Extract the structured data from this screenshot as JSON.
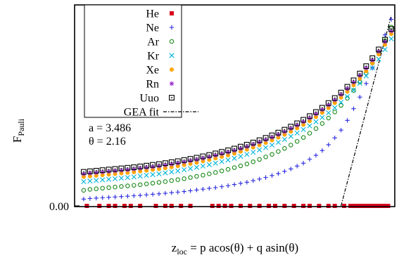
{
  "chart_data": {
    "type": "scatter",
    "ylabel_main": "F",
    "ylabel_sub": "Pauli",
    "xlabel_main": "z",
    "xlabel_sub": "loc",
    "xlabel_rest": " = p acos(θ) + q asin(θ)",
    "ytick_label": "0.00",
    "ytick_value": 0,
    "xlim": [
      0,
      1
    ],
    "ylim": [
      -0.02,
      1
    ],
    "annotations": [
      "a = 3.486",
      "θ = 2.16"
    ],
    "legend_position": "top-left",
    "series": [
      {
        "name": "He",
        "marker": "square-filled",
        "color": "#d6001c",
        "x": [
          0.03,
          0.07,
          0.1,
          0.12,
          0.15,
          0.17,
          0.2,
          0.25,
          0.28,
          0.3,
          0.33,
          0.36,
          0.43,
          0.45,
          0.47,
          0.49,
          0.52,
          0.55,
          0.58,
          0.61,
          0.63,
          0.66,
          0.69,
          0.72,
          0.74,
          0.77,
          0.8,
          0.82,
          0.85,
          0.87,
          0.88,
          0.89,
          0.9,
          0.91,
          0.92,
          0.93,
          0.94,
          0.95,
          0.96,
          0.97,
          0.98,
          0.99
        ],
        "y": [
          0,
          0,
          0,
          0,
          0,
          0,
          0,
          0,
          0,
          0,
          0,
          0,
          0,
          0,
          0,
          0,
          0,
          0,
          0,
          0,
          0,
          0,
          0,
          0,
          0,
          0,
          0,
          0,
          0,
          0,
          0,
          0,
          0,
          0,
          0,
          0,
          0,
          0,
          0,
          0,
          0,
          0
        ]
      },
      {
        "name": "Ne",
        "marker": "plus",
        "color": "#2a2ae0",
        "x": [
          0.02,
          0.04,
          0.06,
          0.08,
          0.1,
          0.12,
          0.14,
          0.16,
          0.18,
          0.2,
          0.22,
          0.24,
          0.26,
          0.28,
          0.3,
          0.32,
          0.34,
          0.36,
          0.38,
          0.4,
          0.42,
          0.44,
          0.46,
          0.48,
          0.5,
          0.52,
          0.54,
          0.56,
          0.58,
          0.6,
          0.62,
          0.64,
          0.66,
          0.68,
          0.7,
          0.72,
          0.74,
          0.76,
          0.78,
          0.8,
          0.82,
          0.84,
          0.86,
          0.88,
          0.9,
          0.92,
          0.94,
          0.96,
          0.98,
          1.0
        ],
        "y": [
          0.035,
          0.038,
          0.04,
          0.042,
          0.044,
          0.046,
          0.048,
          0.05,
          0.052,
          0.054,
          0.057,
          0.06,
          0.062,
          0.065,
          0.068,
          0.071,
          0.074,
          0.078,
          0.082,
          0.086,
          0.09,
          0.094,
          0.099,
          0.104,
          0.11,
          0.116,
          0.122,
          0.13,
          0.138,
          0.146,
          0.156,
          0.166,
          0.178,
          0.19,
          0.205,
          0.22,
          0.24,
          0.26,
          0.285,
          0.315,
          0.35,
          0.39,
          0.44,
          0.5,
          0.56,
          0.63,
          0.71,
          0.79,
          0.88,
          0.96
        ]
      },
      {
        "name": "Ar",
        "marker": "circle",
        "color": "#1a8a1a",
        "x": [
          0.02,
          0.04,
          0.06,
          0.08,
          0.1,
          0.12,
          0.14,
          0.16,
          0.18,
          0.2,
          0.22,
          0.24,
          0.26,
          0.28,
          0.3,
          0.32,
          0.34,
          0.36,
          0.38,
          0.4,
          0.42,
          0.44,
          0.46,
          0.48,
          0.5,
          0.52,
          0.54,
          0.56,
          0.58,
          0.6,
          0.62,
          0.64,
          0.66,
          0.68,
          0.7,
          0.72,
          0.74,
          0.76,
          0.78,
          0.8,
          0.82,
          0.84,
          0.86,
          0.88,
          0.9,
          0.92,
          0.94,
          0.96,
          0.98,
          1.0
        ],
        "y": [
          0.08,
          0.085,
          0.088,
          0.091,
          0.094,
          0.097,
          0.1,
          0.103,
          0.106,
          0.109,
          0.113,
          0.117,
          0.121,
          0.125,
          0.13,
          0.135,
          0.14,
          0.146,
          0.152,
          0.158,
          0.165,
          0.172,
          0.18,
          0.188,
          0.197,
          0.206,
          0.216,
          0.227,
          0.239,
          0.252,
          0.265,
          0.28,
          0.296,
          0.313,
          0.332,
          0.352,
          0.374,
          0.398,
          0.424,
          0.452,
          0.483,
          0.517,
          0.554,
          0.594,
          0.637,
          0.684,
          0.735,
          0.79,
          0.85,
          0.92
        ]
      },
      {
        "name": "Kr",
        "marker": "cross",
        "color": "#00b4d8",
        "x": [
          0.02,
          0.04,
          0.06,
          0.08,
          0.1,
          0.12,
          0.14,
          0.16,
          0.18,
          0.2,
          0.22,
          0.24,
          0.26,
          0.28,
          0.3,
          0.32,
          0.34,
          0.36,
          0.38,
          0.4,
          0.42,
          0.44,
          0.46,
          0.48,
          0.5,
          0.52,
          0.54,
          0.56,
          0.58,
          0.6,
          0.62,
          0.64,
          0.66,
          0.68,
          0.7,
          0.72,
          0.74,
          0.76,
          0.78,
          0.8,
          0.82,
          0.84,
          0.86,
          0.88,
          0.9,
          0.92,
          0.94,
          0.96,
          0.98,
          1.0
        ],
        "y": [
          0.125,
          0.128,
          0.131,
          0.134,
          0.137,
          0.14,
          0.143,
          0.146,
          0.149,
          0.153,
          0.157,
          0.161,
          0.165,
          0.17,
          0.175,
          0.18,
          0.186,
          0.192,
          0.198,
          0.205,
          0.212,
          0.22,
          0.228,
          0.236,
          0.245,
          0.255,
          0.265,
          0.276,
          0.288,
          0.3,
          0.313,
          0.327,
          0.342,
          0.358,
          0.375,
          0.393,
          0.412,
          0.433,
          0.455,
          0.479,
          0.505,
          0.533,
          0.563,
          0.596,
          0.631,
          0.669,
          0.71,
          0.755,
          0.805,
          0.86
        ]
      },
      {
        "name": "Xe",
        "marker": "circle-filled",
        "color": "#ffa500",
        "x": [
          0.02,
          0.04,
          0.06,
          0.08,
          0.1,
          0.12,
          0.14,
          0.16,
          0.18,
          0.2,
          0.22,
          0.24,
          0.26,
          0.28,
          0.3,
          0.32,
          0.34,
          0.36,
          0.38,
          0.4,
          0.42,
          0.44,
          0.46,
          0.48,
          0.5,
          0.52,
          0.54,
          0.56,
          0.58,
          0.6,
          0.62,
          0.64,
          0.66,
          0.68,
          0.7,
          0.72,
          0.74,
          0.76,
          0.78,
          0.8,
          0.82,
          0.84,
          0.86,
          0.88,
          0.9,
          0.92,
          0.94,
          0.96,
          0.98,
          1.0
        ],
        "y": [
          0.15,
          0.153,
          0.156,
          0.159,
          0.162,
          0.165,
          0.168,
          0.171,
          0.174,
          0.178,
          0.182,
          0.186,
          0.19,
          0.195,
          0.2,
          0.205,
          0.211,
          0.217,
          0.223,
          0.23,
          0.237,
          0.245,
          0.253,
          0.261,
          0.27,
          0.28,
          0.29,
          0.301,
          0.313,
          0.325,
          0.338,
          0.352,
          0.367,
          0.383,
          0.4,
          0.418,
          0.437,
          0.458,
          0.48,
          0.504,
          0.53,
          0.558,
          0.588,
          0.621,
          0.656,
          0.694,
          0.735,
          0.78,
          0.83,
          0.885
        ]
      },
      {
        "name": "Rn",
        "marker": "asterisk",
        "color": "#9b30d0",
        "x": [
          0.02,
          0.04,
          0.06,
          0.08,
          0.1,
          0.12,
          0.14,
          0.16,
          0.18,
          0.2,
          0.22,
          0.24,
          0.26,
          0.28,
          0.3,
          0.32,
          0.34,
          0.36,
          0.38,
          0.4,
          0.42,
          0.44,
          0.46,
          0.48,
          0.5,
          0.52,
          0.54,
          0.56,
          0.58,
          0.6,
          0.62,
          0.64,
          0.66,
          0.68,
          0.7,
          0.72,
          0.74,
          0.76,
          0.78,
          0.8,
          0.82,
          0.84,
          0.86,
          0.88,
          0.9,
          0.92,
          0.94,
          0.96,
          0.98,
          1.0
        ],
        "y": [
          0.165,
          0.168,
          0.171,
          0.174,
          0.177,
          0.18,
          0.183,
          0.186,
          0.189,
          0.193,
          0.197,
          0.201,
          0.205,
          0.21,
          0.215,
          0.22,
          0.226,
          0.232,
          0.238,
          0.245,
          0.252,
          0.26,
          0.268,
          0.276,
          0.285,
          0.295,
          0.305,
          0.316,
          0.328,
          0.34,
          0.353,
          0.367,
          0.382,
          0.398,
          0.415,
          0.433,
          0.452,
          0.473,
          0.495,
          0.519,
          0.545,
          0.573,
          0.603,
          0.636,
          0.671,
          0.709,
          0.75,
          0.795,
          0.845,
          0.9
        ]
      },
      {
        "name": "Uuo",
        "marker": "square-dot",
        "color": "#000000",
        "x": [
          0.02,
          0.04,
          0.06,
          0.08,
          0.1,
          0.12,
          0.14,
          0.16,
          0.18,
          0.2,
          0.22,
          0.24,
          0.26,
          0.28,
          0.3,
          0.32,
          0.34,
          0.36,
          0.38,
          0.4,
          0.42,
          0.44,
          0.46,
          0.48,
          0.5,
          0.52,
          0.54,
          0.56,
          0.58,
          0.6,
          0.62,
          0.64,
          0.66,
          0.68,
          0.7,
          0.72,
          0.74,
          0.76,
          0.78,
          0.8,
          0.82,
          0.84,
          0.86,
          0.88,
          0.9,
          0.92,
          0.94,
          0.96,
          0.98,
          1.0
        ],
        "y": [
          0.175,
          0.178,
          0.181,
          0.184,
          0.187,
          0.19,
          0.193,
          0.196,
          0.199,
          0.203,
          0.207,
          0.211,
          0.215,
          0.22,
          0.225,
          0.23,
          0.236,
          0.242,
          0.248,
          0.255,
          0.262,
          0.27,
          0.278,
          0.286,
          0.295,
          0.305,
          0.315,
          0.326,
          0.338,
          0.35,
          0.363,
          0.377,
          0.392,
          0.408,
          0.425,
          0.443,
          0.462,
          0.483,
          0.505,
          0.529,
          0.555,
          0.583,
          0.613,
          0.646,
          0.681,
          0.719,
          0.76,
          0.805,
          0.855,
          0.91
        ]
      },
      {
        "name": "GEA fit",
        "marker": "line-dashdot",
        "color": "#000000",
        "x": [
          0.84,
          1.0
        ],
        "y": [
          0.0,
          0.98
        ]
      }
    ]
  }
}
